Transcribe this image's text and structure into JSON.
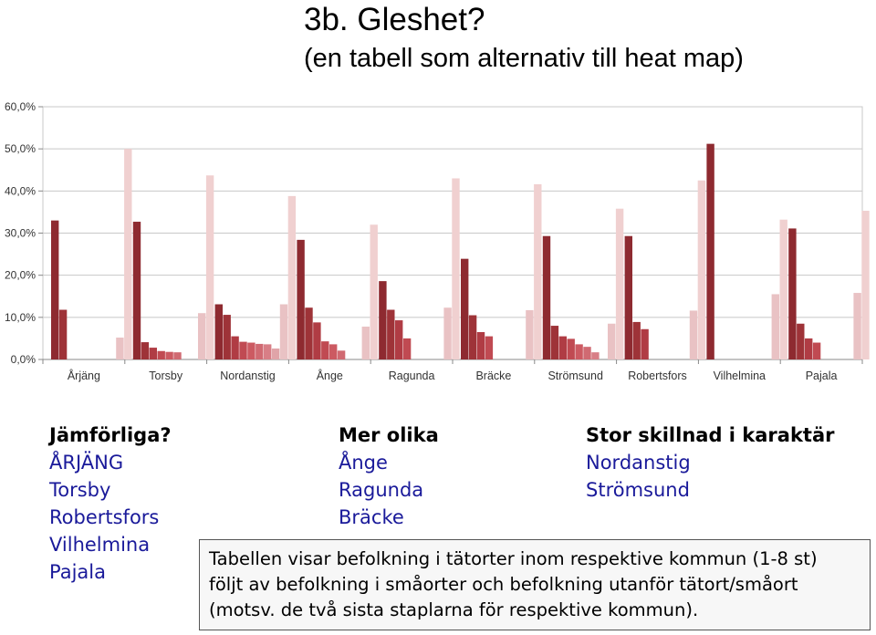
{
  "title": "3b. Gleshet?",
  "subtitle": "(en tabell som alternativ till heat map)",
  "chart_data": {
    "type": "bar",
    "categories": [
      "Årjäng",
      "Torsby",
      "Nordanstig",
      "Ånge",
      "Ragunda",
      "Bräcke",
      "Strömsund",
      "Robertsfors",
      "Vilhelmina",
      "Pajala"
    ],
    "yticks": [
      "0,0%",
      "10,0%",
      "20,0%",
      "30,0%",
      "40,0%",
      "50,0%",
      "60,0%"
    ],
    "ylim": [
      0,
      60
    ],
    "grid": true,
    "series_colors": [
      "#8e2a30",
      "#9e3338",
      "#b03c44",
      "#c04a52",
      "#cc5a62",
      "#d06a72",
      "#d87e86",
      "#e0a4a8",
      "#e9c2c4",
      "#f0d0d0"
    ],
    "groups": [
      {
        "name": "Årjäng",
        "values": [
          33.0,
          11.8,
          0,
          0,
          0,
          0,
          0,
          0,
          5.2,
          50.0
        ]
      },
      {
        "name": "Torsby",
        "values": [
          32.7,
          4.1,
          2.8,
          2.0,
          1.8,
          1.7,
          0,
          0,
          11.0,
          43.7
        ]
      },
      {
        "name": "Nordanstig",
        "values": [
          13.1,
          10.6,
          5.5,
          4.2,
          4.0,
          3.7,
          3.6,
          2.6,
          13.1,
          38.8
        ]
      },
      {
        "name": "Ånge",
        "values": [
          28.4,
          12.3,
          8.8,
          4.3,
          3.6,
          2.1,
          0,
          0,
          7.8,
          32.0
        ]
      },
      {
        "name": "Ragunda",
        "values": [
          18.6,
          11.8,
          9.3,
          5.0,
          0,
          0,
          0,
          0,
          12.3,
          43.0
        ]
      },
      {
        "name": "Bräcke",
        "values": [
          23.9,
          10.5,
          6.5,
          5.5,
          0,
          0,
          0,
          0,
          11.7,
          41.6
        ]
      },
      {
        "name": "Strömsund",
        "values": [
          29.3,
          8.0,
          5.5,
          4.9,
          3.6,
          3.0,
          1.7,
          0,
          8.5,
          35.8
        ]
      },
      {
        "name": "Robertsfors",
        "values": [
          29.3,
          8.9,
          7.2,
          0,
          0,
          0,
          0,
          0,
          11.6,
          42.5
        ]
      },
      {
        "name": "Vilhelmina",
        "values": [
          51.2,
          0,
          0,
          0,
          0,
          0,
          0,
          0,
          15.5,
          33.2
        ]
      },
      {
        "name": "Pajala",
        "values": [
          31.1,
          8.5,
          5.0,
          4.0,
          0,
          0,
          0,
          0,
          15.8,
          35.3
        ]
      }
    ]
  },
  "columns": [
    {
      "heading": "Jämförliga?",
      "items": [
        "ÅRJÄNG",
        "Torsby",
        "Robertsfors",
        "Vilhelmina",
        "Pajala"
      ]
    },
    {
      "heading": "Mer olika",
      "items": [
        "Ånge",
        "Ragunda",
        "Bräcke"
      ]
    },
    {
      "heading": "Stor skillnad i karaktär",
      "items": [
        "Nordanstig",
        "Strömsund"
      ]
    }
  ],
  "note": {
    "lines": [
      "Tabellen visar befolkning i tätorter inom respektive kommun (1-8 st)",
      "följt av befolkning i småorter och befolkning utanför tätort/småort",
      "(motsv. de två sista staplarna för respektive kommun)."
    ]
  }
}
